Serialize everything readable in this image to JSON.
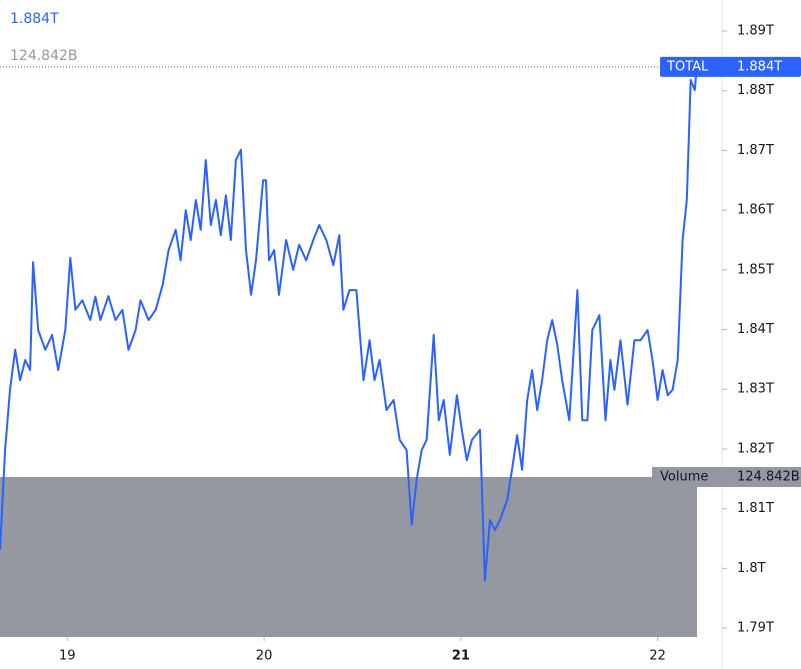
{
  "chart_data": {
    "type": "line",
    "x": [
      18.658,
      18.684,
      18.709,
      18.735,
      18.76,
      18.786,
      18.811,
      18.826,
      18.852,
      18.888,
      18.923,
      18.954,
      18.99,
      19.015,
      19.041,
      19.076,
      19.117,
      19.143,
      19.168,
      19.209,
      19.245,
      19.28,
      19.311,
      19.347,
      19.372,
      19.413,
      19.449,
      19.485,
      19.515,
      19.551,
      19.576,
      19.602,
      19.627,
      19.653,
      19.678,
      19.704,
      19.729,
      19.755,
      19.78,
      19.806,
      19.831,
      19.857,
      19.882,
      19.908,
      19.934,
      19.959,
      19.995,
      20.01,
      20.025,
      20.051,
      20.076,
      20.112,
      20.148,
      20.178,
      20.214,
      20.25,
      20.28,
      20.316,
      20.352,
      20.382,
      20.403,
      20.434,
      20.469,
      20.505,
      20.536,
      20.561,
      20.587,
      20.622,
      20.658,
      20.689,
      20.724,
      20.75,
      20.775,
      20.801,
      20.826,
      20.862,
      20.888,
      20.913,
      20.944,
      20.98,
      21.005,
      21.03,
      21.056,
      21.097,
      21.122,
      21.148,
      21.173,
      21.199,
      21.235,
      21.26,
      21.286,
      21.311,
      21.337,
      21.362,
      21.388,
      21.413,
      21.439,
      21.464,
      21.49,
      21.515,
      21.551,
      21.592,
      21.617,
      21.643,
      21.668,
      21.704,
      21.735,
      21.76,
      21.78,
      21.811,
      21.847,
      21.882,
      21.913,
      21.949,
      21.974,
      22.0,
      22.025,
      22.051,
      22.076,
      22.102,
      22.127,
      22.148,
      22.168,
      22.189,
      22.199
    ],
    "series": [
      {
        "name": "TOTAL",
        "color": "#2962ff",
        "values": [
          1.8031,
          1.8198,
          1.8299,
          1.8366,
          1.8315,
          1.8349,
          1.8332,
          1.8513,
          1.8399,
          1.8366,
          1.8391,
          1.8332,
          1.8399,
          1.852,
          1.8433,
          1.8449,
          1.8416,
          1.8455,
          1.8416,
          1.8456,
          1.8416,
          1.8433,
          1.8366,
          1.8399,
          1.8449,
          1.8416,
          1.8433,
          1.8475,
          1.8533,
          1.8567,
          1.8516,
          1.86,
          1.855,
          1.8617,
          1.8567,
          1.8684,
          1.8575,
          1.8617,
          1.8558,
          1.8625,
          1.855,
          1.8684,
          1.8701,
          1.8533,
          1.8458,
          1.8516,
          1.865,
          1.865,
          1.8516,
          1.8533,
          1.8458,
          1.855,
          1.85,
          1.8542,
          1.8516,
          1.855,
          1.8575,
          1.855,
          1.8508,
          1.8558,
          1.8433,
          1.8466,
          1.8466,
          1.8315,
          1.8382,
          1.8315,
          1.8349,
          1.8265,
          1.8282,
          1.8215,
          1.8198,
          1.8073,
          1.8148,
          1.8198,
          1.8215,
          1.8391,
          1.8248,
          1.8282,
          1.819,
          1.829,
          1.8232,
          1.8181,
          1.8215,
          1.8232,
          1.798,
          1.8081,
          1.8064,
          1.8081,
          1.8114,
          1.8165,
          1.8223,
          1.8165,
          1.8282,
          1.8332,
          1.8265,
          1.8315,
          1.8382,
          1.8416,
          1.8374,
          1.8315,
          1.8248,
          1.8466,
          1.8248,
          1.8248,
          1.8399,
          1.8424,
          1.8248,
          1.8349,
          1.8299,
          1.8382,
          1.8274,
          1.8382,
          1.8382,
          1.8399,
          1.8349,
          1.8282,
          1.8332,
          1.829,
          1.8299,
          1.8349,
          1.855,
          1.8617,
          1.8818,
          1.8801,
          1.884
        ]
      }
    ],
    "last_value": {
      "value": 1.884,
      "label": "1.884T"
    },
    "volume": {
      "name": "Volume",
      "value": 124.842,
      "label": "124.842B",
      "color": "#9598a1"
    },
    "xlim": [
      18.658,
      22.2
    ],
    "xticks": [
      19,
      20,
      21,
      22
    ],
    "ylim": [
      1.7885,
      1.8952
    ],
    "yticks": [
      {
        "value": 1.79,
        "label": "1.79T"
      },
      {
        "value": 1.8,
        "label": "1.8T"
      },
      {
        "value": 1.81,
        "label": "1.81T"
      },
      {
        "value": 1.82,
        "label": "1.82T"
      },
      {
        "value": 1.83,
        "label": "1.83T"
      },
      {
        "value": 1.84,
        "label": "1.84T"
      },
      {
        "value": 1.85,
        "label": "1.85T"
      },
      {
        "value": 1.86,
        "label": "1.86T"
      },
      {
        "value": 1.87,
        "label": "1.87T"
      },
      {
        "value": 1.88,
        "label": "1.88T"
      },
      {
        "value": 1.89,
        "label": "1.89T"
      }
    ],
    "grid": false
  }
}
